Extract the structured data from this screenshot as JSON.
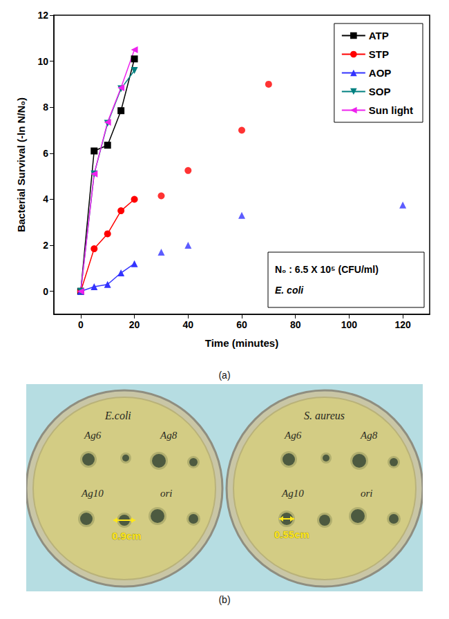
{
  "chart_data": {
    "type": "line",
    "x_label": "Time (minutes)",
    "y_label": "Bacterial Survival (-ln N/N₀)",
    "xlim": [
      -10,
      130
    ],
    "xticks": [
      0,
      20,
      40,
      60,
      80,
      100,
      120
    ],
    "ylim": [
      -1,
      12
    ],
    "yticks": [
      0,
      2,
      4,
      6,
      8,
      10,
      12
    ],
    "grid": false,
    "legend": "upper right",
    "annotations": [
      "N₀ : 6.5 X 10⁵ (CFU/ml)",
      "E. coli"
    ],
    "series": [
      {
        "name": "ATP",
        "type": "line",
        "color": "#000000",
        "marker": "square",
        "x": [
          0,
          5,
          10,
          15,
          20
        ],
        "values": [
          0,
          6.1,
          6.35,
          7.85,
          10.1
        ]
      },
      {
        "name": "STP",
        "type": "line",
        "color": "#ff0000",
        "marker": "circle",
        "x": [
          0,
          5,
          10,
          15,
          20
        ],
        "values": [
          0,
          1.85,
          2.5,
          3.5,
          4.0
        ]
      },
      {
        "name": "STP",
        "type": "scatter",
        "color": "#ff0000",
        "marker": "circle",
        "x": [
          30,
          40,
          60,
          70
        ],
        "values": [
          4.15,
          5.25,
          7.0,
          9.0
        ]
      },
      {
        "name": "AOP",
        "type": "line",
        "color": "#3333ff",
        "marker": "triangle-up",
        "x": [
          0,
          5,
          10,
          15,
          20
        ],
        "values": [
          0,
          0.2,
          0.3,
          0.8,
          1.2
        ]
      },
      {
        "name": "AOP",
        "type": "scatter",
        "color": "#3333ff",
        "marker": "triangle-up",
        "x": [
          30,
          40,
          60,
          120
        ],
        "values": [
          1.7,
          2.0,
          3.3,
          3.75
        ]
      },
      {
        "name": "SOP",
        "type": "line",
        "color": "#008080",
        "marker": "triangle-down",
        "x": [
          0,
          5,
          10,
          15,
          20
        ],
        "values": [
          0,
          5.1,
          7.3,
          8.8,
          9.6
        ]
      },
      {
        "name": "Sun light",
        "type": "line",
        "color": "#ee22ee",
        "marker": "triangle-left",
        "x": [
          0,
          5,
          10,
          15,
          20
        ],
        "values": [
          0,
          5.1,
          7.35,
          8.85,
          10.5
        ]
      }
    ]
  },
  "captions": [
    "(a)",
    "(b)"
  ],
  "photo": {
    "plates": [
      {
        "title": "E.coli",
        "wells": [
          "Ag6",
          "Ag8",
          "Ag10",
          "ori"
        ],
        "zone": "0.9cm"
      },
      {
        "title": "S. aureus",
        "wells": [
          "Ag6",
          "Ag8",
          "Ag10",
          "ori"
        ],
        "zone": "0.55cm"
      }
    ]
  }
}
